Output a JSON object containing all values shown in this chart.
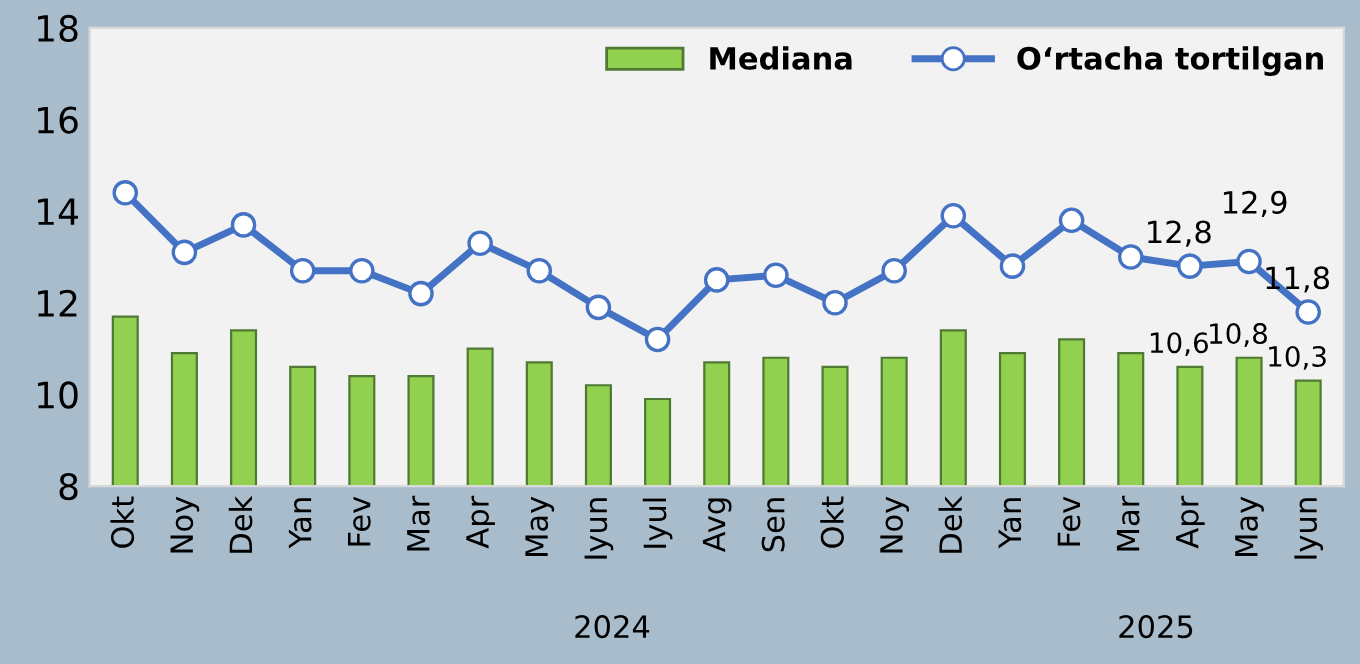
{
  "chart_data": {
    "type": "bar",
    "categories": [
      "Okt",
      "Noy",
      "Dek",
      "Yan",
      "Fev",
      "Mar",
      "Apr",
      "May",
      "Iyun",
      "Iyul",
      "Avg",
      "Sen",
      "Okt",
      "Noy",
      "Dek",
      "Yan",
      "Fev",
      "Mar",
      "Apr",
      "May",
      "Iyun"
    ],
    "series": [
      {
        "name": "Mediana",
        "color": "#92d050",
        "values": [
          11.7,
          10.9,
          11.4,
          10.6,
          10.4,
          10.4,
          11.0,
          10.7,
          10.2,
          9.9,
          10.7,
          10.8,
          10.6,
          10.8,
          11.4,
          10.9,
          11.2,
          10.9,
          10.6,
          10.8,
          10.3
        ],
        "value_labels": [
          null,
          null,
          null,
          null,
          null,
          null,
          null,
          null,
          null,
          null,
          null,
          null,
          null,
          null,
          null,
          null,
          null,
          null,
          "10,6",
          "10,8",
          "10,3"
        ]
      },
      {
        "name": "O‘rtacha tortilgan",
        "type": "line",
        "color": "#4472c4",
        "values": [
          14.4,
          13.1,
          13.7,
          12.7,
          12.7,
          12.2,
          13.3,
          12.7,
          11.9,
          11.2,
          12.5,
          12.6,
          12.0,
          12.7,
          13.9,
          12.8,
          13.8,
          13.0,
          12.8,
          12.9,
          11.8
        ],
        "value_labels": [
          null,
          null,
          null,
          null,
          null,
          null,
          null,
          null,
          null,
          null,
          null,
          null,
          null,
          null,
          null,
          null,
          null,
          null,
          "12,8",
          "12,9",
          "11,8"
        ]
      }
    ],
    "ylim": [
      8,
      18
    ],
    "yticks": [
      8,
      10,
      12,
      14,
      16,
      18
    ],
    "grid": false,
    "legend": "top right",
    "marker": "circle",
    "line_style": "solid",
    "annotations": [
      "2024",
      "2025"
    ]
  }
}
